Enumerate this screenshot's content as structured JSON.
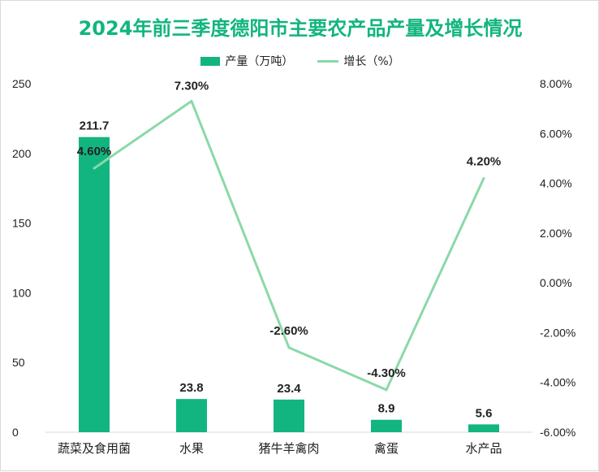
{
  "title": "2024年前三季度德阳市主要农产品产量及增长情况",
  "colors": {
    "title": "#12b57f",
    "bar": "#12b57f",
    "line": "#8ad9a9"
  },
  "chart_data": {
    "type": "bar",
    "title": "2024年前三季度德阳市主要农产品产量及增长情况",
    "categories": [
      "蔬菜及食用菌",
      "水果",
      "猪牛羊禽肉",
      "禽蛋",
      "水产品"
    ],
    "series": [
      {
        "name": "产量（万吨）",
        "type": "bar",
        "axis": "left",
        "values": [
          211.7,
          23.8,
          23.4,
          8.9,
          5.6
        ],
        "labels": [
          "211.7",
          "23.8",
          "23.4",
          "8.9",
          "5.6"
        ]
      },
      {
        "name": "增长（%）",
        "type": "line",
        "axis": "right",
        "values": [
          4.6,
          7.3,
          -2.6,
          -4.3,
          4.2
        ],
        "labels": [
          "4.60%",
          "7.30%",
          "-2.60%",
          "-4.30%",
          "4.20%"
        ]
      }
    ],
    "y_left": {
      "lim": [
        0,
        250
      ],
      "ticks": [
        "0",
        "50",
        "100",
        "150",
        "200",
        "250"
      ]
    },
    "y_right": {
      "lim": [
        -6,
        8
      ],
      "ticks": [
        "-6.00%",
        "-4.00%",
        "-2.00%",
        "0.00%",
        "2.00%",
        "4.00%",
        "6.00%",
        "8.00%"
      ]
    },
    "legend": "top-center",
    "grid": false
  }
}
